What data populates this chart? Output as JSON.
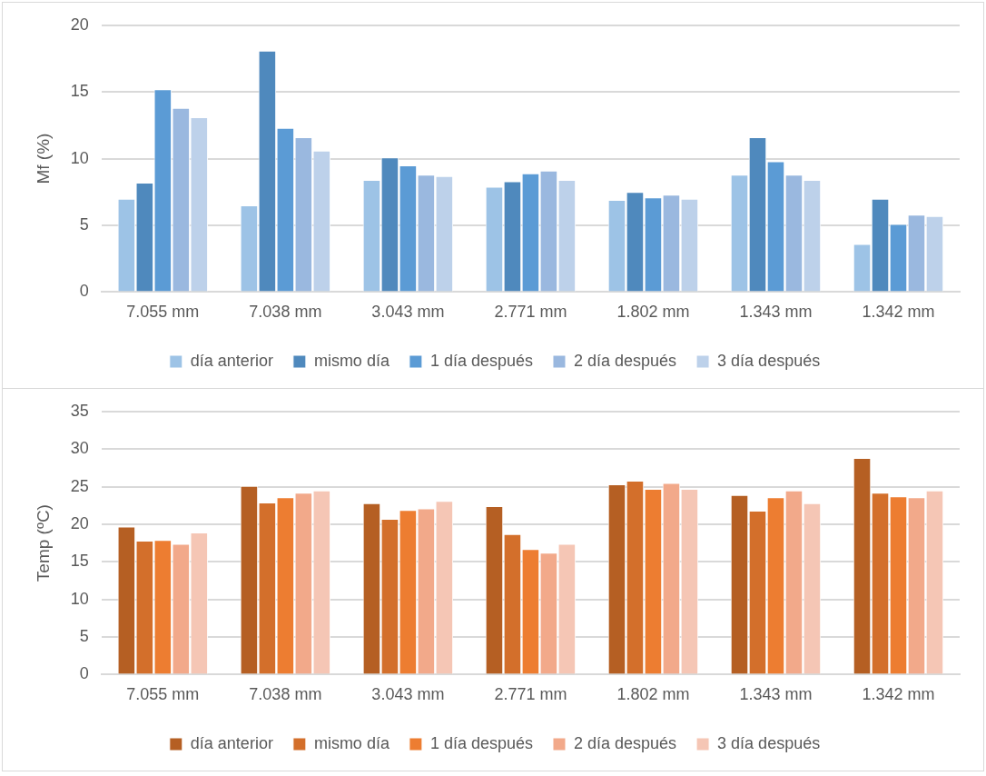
{
  "chart_data": [
    {
      "type": "bar",
      "ylabel": "Mf (%)",
      "categories": [
        "7.055 mm",
        "7.038 mm",
        "3.043 mm",
        "2.771 mm",
        "1.802 mm",
        "1.343 mm",
        "1.342 mm"
      ],
      "ylim": [
        0,
        20
      ],
      "yticks": [
        0,
        5,
        10,
        15,
        20
      ],
      "grid": "y",
      "legend": "bottom",
      "series": [
        {
          "name": "día anterior",
          "color": "#9dc3e6",
          "values": [
            7.0,
            6.5,
            8.4,
            7.9,
            6.9,
            8.8,
            3.6
          ]
        },
        {
          "name": "mismo día",
          "color": "#4f89bd",
          "values": [
            8.2,
            18.1,
            10.1,
            8.3,
            7.5,
            11.6,
            7.0
          ]
        },
        {
          "name": "1 día después",
          "color": "#5b9bd5",
          "values": [
            15.2,
            12.3,
            9.5,
            8.9,
            7.1,
            9.8,
            5.1
          ]
        },
        {
          "name": "2 día después",
          "color": "#9ab8df",
          "values": [
            13.8,
            11.6,
            8.8,
            9.1,
            7.3,
            8.8,
            5.8
          ]
        },
        {
          "name": "3 día después",
          "color": "#bdd1ea",
          "values": [
            13.1,
            10.6,
            8.7,
            8.4,
            7.0,
            8.4,
            5.7
          ]
        }
      ]
    },
    {
      "type": "bar",
      "ylabel": "Temp (ºC)",
      "categories": [
        "7.055 mm",
        "7.038 mm",
        "3.043 mm",
        "2.771 mm",
        "1.802 mm",
        "1.343 mm",
        "1.342 mm"
      ],
      "ylim": [
        0,
        35
      ],
      "yticks": [
        0,
        5,
        10,
        15,
        20,
        25,
        30,
        35
      ],
      "grid": "y",
      "legend": "bottom",
      "series": [
        {
          "name": "día anterior",
          "color": "#b55f23",
          "values": [
            19.7,
            25.1,
            22.8,
            22.4,
            25.3,
            23.9,
            28.8
          ]
        },
        {
          "name": "mismo día",
          "color": "#d36f2b",
          "values": [
            17.8,
            22.9,
            20.7,
            18.7,
            25.8,
            21.8,
            24.2
          ]
        },
        {
          "name": "1 día después",
          "color": "#ed7d31",
          "values": [
            17.9,
            23.6,
            21.9,
            16.7,
            24.7,
            23.6,
            23.7
          ]
        },
        {
          "name": "2 día después",
          "color": "#f2a98a",
          "values": [
            17.4,
            24.2,
            22.1,
            16.2,
            25.5,
            24.5,
            23.6
          ]
        },
        {
          "name": "3 día después",
          "color": "#f5c6b5",
          "values": [
            18.9,
            24.5,
            23.1,
            17.4,
            24.7,
            22.8,
            24.5
          ]
        }
      ]
    }
  ]
}
